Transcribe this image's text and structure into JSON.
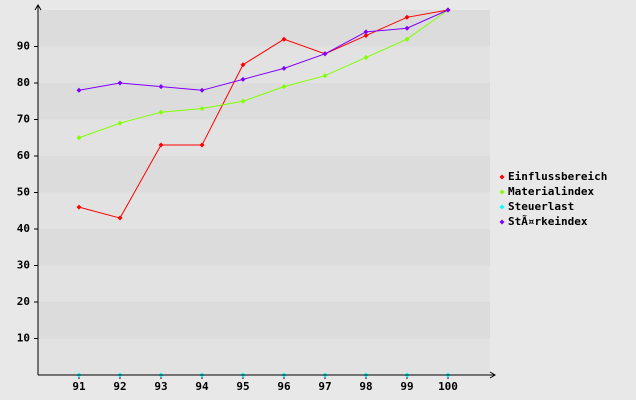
{
  "chart_data": {
    "type": "line",
    "categories": [
      "91",
      "92",
      "93",
      "94",
      "95",
      "96",
      "97",
      "98",
      "99",
      "100"
    ],
    "series": [
      {
        "name": "Einflussbereich",
        "color": "#ff0000",
        "values": [
          46,
          43,
          63,
          63,
          85,
          92,
          88,
          93,
          98,
          100
        ]
      },
      {
        "name": "Materialindex",
        "color": "#80ff00",
        "values": [
          65,
          69,
          72,
          73,
          75,
          79,
          82,
          87,
          92,
          100
        ]
      },
      {
        "name": "Steuerlast",
        "color": "#00ffff",
        "values": [
          0,
          0,
          0,
          0,
          0,
          0,
          0,
          0,
          0,
          0
        ]
      },
      {
        "name": "StÃ¤rkeindex",
        "color": "#8000ff",
        "values": [
          78,
          80,
          79,
          78,
          81,
          84,
          88,
          94,
          95,
          100
        ]
      }
    ],
    "ylim": [
      0,
      100
    ],
    "yticks": [
      10,
      20,
      30,
      40,
      50,
      60,
      70,
      80,
      90
    ],
    "grid": true
  }
}
